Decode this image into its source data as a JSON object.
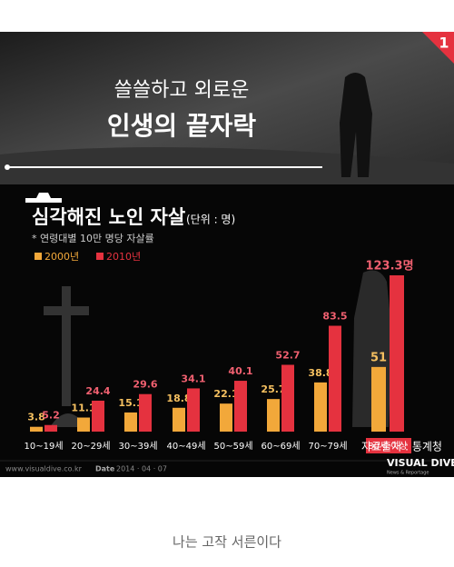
{
  "header": {
    "badge": "1",
    "line1": "쓸쓸하고 외로운",
    "line2": "인생의 끝자락"
  },
  "chart_data": {
    "type": "bar",
    "title": "심각해진 노인 자살",
    "unit": "(단위 : 명)",
    "subtitle": "* 연령대별 10만 명당 자살률",
    "categories": [
      "10~19세",
      "20~29세",
      "30~39세",
      "40~49세",
      "50~59세",
      "60~69세",
      "70~79세",
      "80세 이상"
    ],
    "series": [
      {
        "name": "2000년",
        "color": "#f2a83a",
        "values": [
          3.8,
          11.1,
          15.1,
          18.8,
          22.1,
          25.7,
          38.8,
          51
        ]
      },
      {
        "name": "2010년",
        "color": "#e5323f",
        "values": [
          5.2,
          24.4,
          29.6,
          34.1,
          40.1,
          52.7,
          83.5,
          123.3
        ],
        "value_labels": [
          "5.2",
          "24.4",
          "29.6",
          "34.1",
          "40.1",
          "52.7",
          "83.5",
          "123.3명"
        ]
      }
    ]
  },
  "footer": {
    "source": "자료출처 : 통계청",
    "site": "www.visualdive.co.kr",
    "date_label": "Date",
    "date": "2014 · 04 · 07",
    "brand": "VISUAL DIVE",
    "brand_sub": "News & Reportage"
  },
  "caption": "나는 고작 서른이다"
}
